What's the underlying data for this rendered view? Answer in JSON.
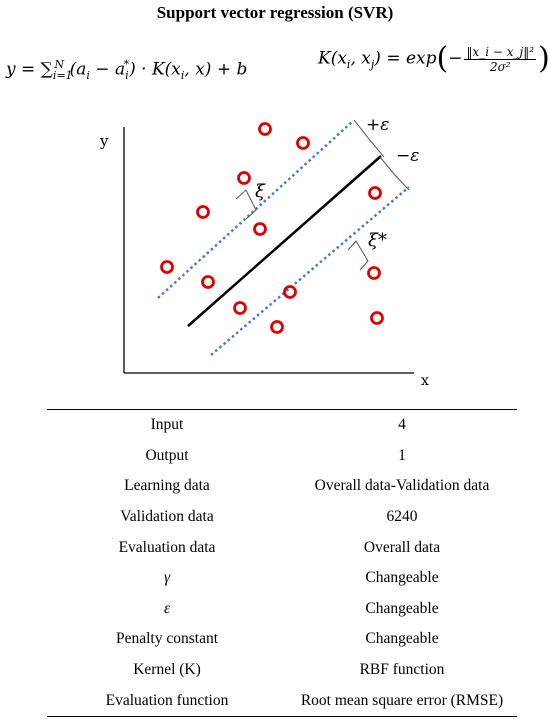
{
  "title": "Support vector regression (SVR)",
  "formula_left": {
    "lhs": "y",
    "eq": "=",
    "sum": "∑",
    "sum_lower": "i=1",
    "sum_upper": "N",
    "term": "(a",
    "term_sub": "i",
    "minus": " − a",
    "star": "*",
    "star_sub": "i",
    "rest": ") · K(x",
    "rest_sub": "i",
    "tail": ", x) + b"
  },
  "formula_right": {
    "lhs": "K(x",
    "lhs_sub1": "i",
    "mid": ", x",
    "lhs_sub2": "j",
    "close": ") = exp",
    "numerator": "‖x_i − x_j‖²",
    "denominator": "2σ²",
    "neg": "−"
  },
  "diagram": {
    "axis_y_label": "y",
    "axis_x_label": "x",
    "plus_eps_label": "+ε",
    "minus_eps_label": "−ε",
    "xi_label": "ξ",
    "xi_star_label": "ξ*",
    "line_color": "#000000",
    "margin_color": "#4a7ac0",
    "point_color": "#e00000"
  },
  "table": {
    "rows": [
      {
        "param": "Input",
        "value": "4"
      },
      {
        "param": "Output",
        "value": "1"
      },
      {
        "param": "Learning data",
        "value": "Overall data-Validation data"
      },
      {
        "param": "Validation data",
        "value": "6240"
      },
      {
        "param": "Evaluation data",
        "value": "Overall data"
      },
      {
        "param": "γ",
        "value": "Changeable"
      },
      {
        "param": "ε",
        "value": "Changeable"
      },
      {
        "param": "Penalty constant",
        "value": "Changeable"
      },
      {
        "param": "Kernel (K)",
        "value": "RBF function"
      },
      {
        "param": "Evaluation function",
        "value": "Root mean square error (RMSE)"
      }
    ]
  }
}
